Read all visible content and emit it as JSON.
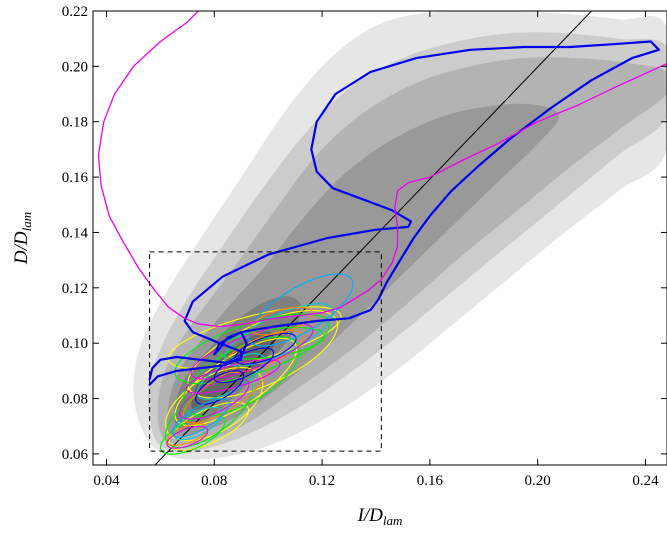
{
  "chart_data": {
    "type": "contour",
    "title": "",
    "xlabel": {
      "main": "I/D",
      "sub": "lam"
    },
    "ylabel": {
      "main": "D/D",
      "sub": "lam"
    },
    "xlim": [
      0.035,
      0.248
    ],
    "ylim": [
      0.056,
      0.22
    ],
    "x_ticks": [
      0.04,
      0.08,
      0.12,
      0.16,
      0.2,
      0.24
    ],
    "x_tick_labels": [
      "0.04",
      "0.08",
      "0.12",
      "0.16",
      "0.20",
      "0.24"
    ],
    "y_ticks": [
      0.06,
      0.08,
      0.1,
      0.12,
      0.14,
      0.16,
      0.18,
      0.2,
      0.22
    ],
    "y_tick_labels": [
      "0.06",
      "0.08",
      "0.10",
      "0.12",
      "0.14",
      "0.16",
      "0.18",
      "0.20",
      "0.22"
    ],
    "grid": false,
    "legend": "none",
    "density_contours": [
      {
        "level": 1,
        "color": "#e6e6e6",
        "points": [
          [
            0.058,
            0.062
          ],
          [
            0.052,
            0.072
          ],
          [
            0.05,
            0.085
          ],
          [
            0.053,
            0.1
          ],
          [
            0.062,
            0.118
          ],
          [
            0.075,
            0.138
          ],
          [
            0.09,
            0.16
          ],
          [
            0.105,
            0.182
          ],
          [
            0.12,
            0.2
          ],
          [
            0.135,
            0.212
          ],
          [
            0.15,
            0.218
          ],
          [
            0.17,
            0.22
          ],
          [
            0.19,
            0.22
          ],
          [
            0.21,
            0.219
          ],
          [
            0.23,
            0.217
          ],
          [
            0.248,
            0.214
          ],
          [
            0.248,
            0.17
          ],
          [
            0.23,
            0.155
          ],
          [
            0.21,
            0.14
          ],
          [
            0.19,
            0.124
          ],
          [
            0.17,
            0.108
          ],
          [
            0.15,
            0.092
          ],
          [
            0.13,
            0.078
          ],
          [
            0.11,
            0.067
          ],
          [
            0.09,
            0.06
          ],
          [
            0.07,
            0.058
          ]
        ]
      },
      {
        "level": 2,
        "color": "#cccccc",
        "points": [
          [
            0.06,
            0.063
          ],
          [
            0.056,
            0.073
          ],
          [
            0.056,
            0.086
          ],
          [
            0.061,
            0.1
          ],
          [
            0.07,
            0.116
          ],
          [
            0.083,
            0.135
          ],
          [
            0.098,
            0.156
          ],
          [
            0.113,
            0.175
          ],
          [
            0.13,
            0.192
          ],
          [
            0.15,
            0.203
          ],
          [
            0.17,
            0.209
          ],
          [
            0.19,
            0.212
          ],
          [
            0.21,
            0.212
          ],
          [
            0.23,
            0.21
          ],
          [
            0.248,
            0.207
          ],
          [
            0.248,
            0.182
          ],
          [
            0.23,
            0.168
          ],
          [
            0.21,
            0.152
          ],
          [
            0.19,
            0.136
          ],
          [
            0.17,
            0.12
          ],
          [
            0.15,
            0.104
          ],
          [
            0.13,
            0.089
          ],
          [
            0.11,
            0.076
          ],
          [
            0.09,
            0.066
          ],
          [
            0.072,
            0.061
          ]
        ]
      },
      {
        "level": 3,
        "color": "#b3b3b3",
        "points": [
          [
            0.062,
            0.065
          ],
          [
            0.059,
            0.075
          ],
          [
            0.061,
            0.088
          ],
          [
            0.067,
            0.1
          ],
          [
            0.077,
            0.114
          ],
          [
            0.09,
            0.131
          ],
          [
            0.104,
            0.15
          ],
          [
            0.118,
            0.168
          ],
          [
            0.135,
            0.183
          ],
          [
            0.155,
            0.194
          ],
          [
            0.175,
            0.2
          ],
          [
            0.195,
            0.203
          ],
          [
            0.215,
            0.203
          ],
          [
            0.235,
            0.201
          ],
          [
            0.248,
            0.198
          ],
          [
            0.248,
            0.19
          ],
          [
            0.23,
            0.177
          ],
          [
            0.21,
            0.162
          ],
          [
            0.19,
            0.146
          ],
          [
            0.17,
            0.13
          ],
          [
            0.15,
            0.113
          ],
          [
            0.13,
            0.097
          ],
          [
            0.11,
            0.083
          ],
          [
            0.092,
            0.071
          ],
          [
            0.075,
            0.064
          ]
        ]
      },
      {
        "level": 4,
        "color": "#999999",
        "points": [
          [
            0.064,
            0.067
          ],
          [
            0.063,
            0.078
          ],
          [
            0.067,
            0.09
          ],
          [
            0.075,
            0.101
          ],
          [
            0.086,
            0.114
          ],
          [
            0.099,
            0.128
          ],
          [
            0.112,
            0.144
          ],
          [
            0.127,
            0.16
          ],
          [
            0.145,
            0.173
          ],
          [
            0.165,
            0.182
          ],
          [
            0.185,
            0.186
          ],
          [
            0.2,
            0.186
          ],
          [
            0.208,
            0.182
          ],
          [
            0.2,
            0.172
          ],
          [
            0.185,
            0.158
          ],
          [
            0.168,
            0.142
          ],
          [
            0.15,
            0.125
          ],
          [
            0.132,
            0.108
          ],
          [
            0.114,
            0.092
          ],
          [
            0.097,
            0.079
          ],
          [
            0.081,
            0.07
          ]
        ]
      },
      {
        "level": 5,
        "color": "#808080",
        "points": [
          [
            0.066,
            0.07
          ],
          [
            0.066,
            0.08
          ],
          [
            0.071,
            0.09
          ],
          [
            0.079,
            0.099
          ],
          [
            0.088,
            0.108
          ],
          [
            0.097,
            0.114
          ],
          [
            0.106,
            0.117
          ],
          [
            0.112,
            0.114
          ],
          [
            0.11,
            0.105
          ],
          [
            0.102,
            0.095
          ],
          [
            0.092,
            0.085
          ],
          [
            0.082,
            0.076
          ],
          [
            0.073,
            0.07
          ]
        ]
      },
      {
        "level": 6,
        "color": "#666666",
        "points": [
          [
            0.072,
            0.076
          ],
          [
            0.073,
            0.084
          ],
          [
            0.079,
            0.091
          ],
          [
            0.087,
            0.098
          ],
          [
            0.095,
            0.103
          ],
          [
            0.101,
            0.104
          ],
          [
            0.102,
            0.099
          ],
          [
            0.097,
            0.092
          ],
          [
            0.089,
            0.085
          ],
          [
            0.08,
            0.079
          ]
        ]
      }
    ],
    "highlight_box": {
      "x": [
        0.056,
        0.142
      ],
      "y": [
        0.061,
        0.133
      ],
      "style": "dashed",
      "color": "#000000"
    },
    "reference_line": {
      "points": [
        [
          0.058,
          0.056
        ],
        [
          0.22,
          0.22
        ]
      ],
      "color": "#000000"
    },
    "trajectories": [
      {
        "color": "#0000ee",
        "width": 2.2,
        "points": [
          [
            0.056,
            0.085
          ],
          [
            0.059,
            0.088
          ],
          [
            0.066,
            0.09
          ],
          [
            0.075,
            0.091
          ],
          [
            0.084,
            0.092
          ],
          [
            0.09,
            0.095
          ],
          [
            0.092,
            0.1
          ],
          [
            0.09,
            0.104
          ],
          [
            0.085,
            0.102
          ],
          [
            0.082,
            0.098
          ],
          [
            0.08,
            0.096
          ],
          [
            0.082,
            0.1
          ],
          [
            0.09,
            0.104
          ],
          [
            0.102,
            0.106
          ],
          [
            0.118,
            0.108
          ],
          [
            0.13,
            0.109
          ],
          [
            0.138,
            0.112
          ],
          [
            0.141,
            0.116
          ],
          [
            0.144,
            0.122
          ],
          [
            0.149,
            0.13
          ],
          [
            0.154,
            0.138
          ],
          [
            0.16,
            0.146
          ],
          [
            0.168,
            0.155
          ],
          [
            0.178,
            0.164
          ],
          [
            0.19,
            0.174
          ],
          [
            0.205,
            0.185
          ],
          [
            0.22,
            0.195
          ],
          [
            0.235,
            0.203
          ],
          [
            0.245,
            0.206
          ],
          [
            0.242,
            0.209
          ],
          [
            0.228,
            0.208
          ],
          [
            0.212,
            0.207
          ],
          [
            0.195,
            0.207
          ],
          [
            0.175,
            0.206
          ],
          [
            0.155,
            0.203
          ],
          [
            0.138,
            0.198
          ],
          [
            0.125,
            0.19
          ],
          [
            0.118,
            0.18
          ],
          [
            0.116,
            0.17
          ],
          [
            0.118,
            0.162
          ],
          [
            0.124,
            0.156
          ],
          [
            0.135,
            0.152
          ],
          [
            0.146,
            0.148
          ],
          [
            0.153,
            0.144
          ],
          [
            0.152,
            0.142
          ],
          [
            0.14,
            0.141
          ],
          [
            0.122,
            0.138
          ],
          [
            0.1,
            0.132
          ],
          [
            0.083,
            0.124
          ],
          [
            0.072,
            0.115
          ],
          [
            0.069,
            0.108
          ],
          [
            0.072,
            0.104
          ],
          [
            0.082,
            0.1
          ],
          [
            0.09,
            0.097
          ],
          [
            0.09,
            0.094
          ],
          [
            0.084,
            0.093
          ],
          [
            0.075,
            0.094
          ],
          [
            0.066,
            0.095
          ],
          [
            0.06,
            0.094
          ],
          [
            0.057,
            0.091
          ],
          [
            0.056,
            0.087
          ]
        ]
      },
      {
        "color": "#ee00ee",
        "width": 1.3,
        "points": [
          [
            0.074,
            0.22
          ],
          [
            0.07,
            0.216
          ],
          [
            0.06,
            0.209
          ],
          [
            0.05,
            0.2
          ],
          [
            0.043,
            0.19
          ],
          [
            0.039,
            0.18
          ],
          [
            0.037,
            0.168
          ],
          [
            0.038,
            0.157
          ],
          [
            0.041,
            0.146
          ],
          [
            0.046,
            0.137
          ],
          [
            0.052,
            0.127
          ],
          [
            0.058,
            0.119
          ],
          [
            0.063,
            0.113
          ],
          [
            0.069,
            0.109
          ],
          [
            0.074,
            0.107
          ],
          [
            0.082,
            0.106
          ],
          [
            0.092,
            0.107
          ],
          [
            0.102,
            0.109
          ],
          [
            0.112,
            0.11
          ],
          [
            0.12,
            0.111
          ],
          [
            0.127,
            0.113
          ],
          [
            0.132,
            0.116
          ],
          [
            0.137,
            0.119
          ],
          [
            0.142,
            0.123
          ],
          [
            0.146,
            0.129
          ],
          [
            0.148,
            0.135
          ],
          [
            0.148,
            0.142
          ],
          [
            0.147,
            0.149
          ],
          [
            0.148,
            0.155
          ],
          [
            0.152,
            0.158
          ],
          [
            0.16,
            0.16
          ],
          [
            0.172,
            0.166
          ],
          [
            0.185,
            0.172
          ],
          [
            0.2,
            0.18
          ],
          [
            0.215,
            0.186
          ],
          [
            0.23,
            0.193
          ],
          [
            0.248,
            0.201
          ]
        ]
      }
    ],
    "cycles": [
      {
        "color": "#ffff00",
        "cx": 0.095,
        "cy": 0.102,
        "rx": 0.033,
        "ry": 0.008,
        "angle": 14
      },
      {
        "color": "#ffff00",
        "cx": 0.098,
        "cy": 0.096,
        "rx": 0.03,
        "ry": 0.011,
        "angle": 24
      },
      {
        "color": "#ffff00",
        "cx": 0.08,
        "cy": 0.078,
        "rx": 0.02,
        "ry": 0.01,
        "angle": 30
      },
      {
        "color": "#ffff00",
        "cx": 0.078,
        "cy": 0.07,
        "rx": 0.016,
        "ry": 0.006,
        "angle": 25
      },
      {
        "color": "#ffff00",
        "cx": 0.088,
        "cy": 0.086,
        "rx": 0.026,
        "ry": 0.009,
        "angle": 32
      },
      {
        "color": "#00ee00",
        "cx": 0.094,
        "cy": 0.098,
        "rx": 0.03,
        "ry": 0.009,
        "angle": 18
      },
      {
        "color": "#00ee00",
        "cx": 0.078,
        "cy": 0.075,
        "rx": 0.019,
        "ry": 0.008,
        "angle": 35
      },
      {
        "color": "#00ee00",
        "cx": 0.072,
        "cy": 0.067,
        "rx": 0.013,
        "ry": 0.005,
        "angle": 25
      },
      {
        "color": "#00ee00",
        "cx": 0.09,
        "cy": 0.088,
        "rx": 0.024,
        "ry": 0.01,
        "angle": 28
      },
      {
        "color": "#00ee00",
        "cx": 0.101,
        "cy": 0.1,
        "rx": 0.02,
        "ry": 0.005,
        "angle": 8
      },
      {
        "color": "#ff8800",
        "cx": 0.084,
        "cy": 0.082,
        "rx": 0.018,
        "ry": 0.006,
        "angle": 32
      },
      {
        "color": "#ff8800",
        "cx": 0.098,
        "cy": 0.097,
        "rx": 0.016,
        "ry": 0.005,
        "angle": 22
      },
      {
        "color": "#ff8800",
        "cx": 0.07,
        "cy": 0.067,
        "rx": 0.008,
        "ry": 0.003,
        "angle": 20
      },
      {
        "color": "#00cccc",
        "cx": 0.104,
        "cy": 0.103,
        "rx": 0.022,
        "ry": 0.007,
        "angle": 25
      },
      {
        "color": "#00cccc",
        "cx": 0.086,
        "cy": 0.088,
        "rx": 0.014,
        "ry": 0.005,
        "angle": 30
      },
      {
        "color": "#00cccc",
        "cx": 0.074,
        "cy": 0.071,
        "rx": 0.01,
        "ry": 0.004,
        "angle": 28
      },
      {
        "color": "#ee00ee",
        "cx": 0.094,
        "cy": 0.097,
        "rx": 0.024,
        "ry": 0.006,
        "angle": 20
      },
      {
        "color": "#ee00ee",
        "cx": 0.08,
        "cy": 0.08,
        "rx": 0.014,
        "ry": 0.005,
        "angle": 25
      },
      {
        "color": "#ee00ee",
        "cx": 0.07,
        "cy": 0.066,
        "rx": 0.008,
        "ry": 0.003,
        "angle": 20
      },
      {
        "color": "#ee00ee",
        "cx": 0.087,
        "cy": 0.088,
        "rx": 0.018,
        "ry": 0.004,
        "angle": 15
      },
      {
        "color": "#0000ee",
        "cx": 0.091,
        "cy": 0.092,
        "rx": 0.012,
        "ry": 0.004,
        "angle": 25
      },
      {
        "color": "#0000ee",
        "cx": 0.082,
        "cy": 0.084,
        "rx": 0.01,
        "ry": 0.004,
        "angle": 30
      },
      {
        "color": "#0000ee",
        "cx": 0.099,
        "cy": 0.098,
        "rx": 0.012,
        "ry": 0.004,
        "angle": 20
      },
      {
        "color": "#00aaff",
        "cx": 0.112,
        "cy": 0.112,
        "rx": 0.022,
        "ry": 0.008,
        "angle": 30
      },
      {
        "color": "#00aaff",
        "cx": 0.075,
        "cy": 0.073,
        "rx": 0.012,
        "ry": 0.004,
        "angle": 30
      },
      {
        "color": "#ff8800",
        "cx": 0.105,
        "cy": 0.108,
        "rx": 0.012,
        "ry": 0.004,
        "angle": 15
      }
    ]
  }
}
